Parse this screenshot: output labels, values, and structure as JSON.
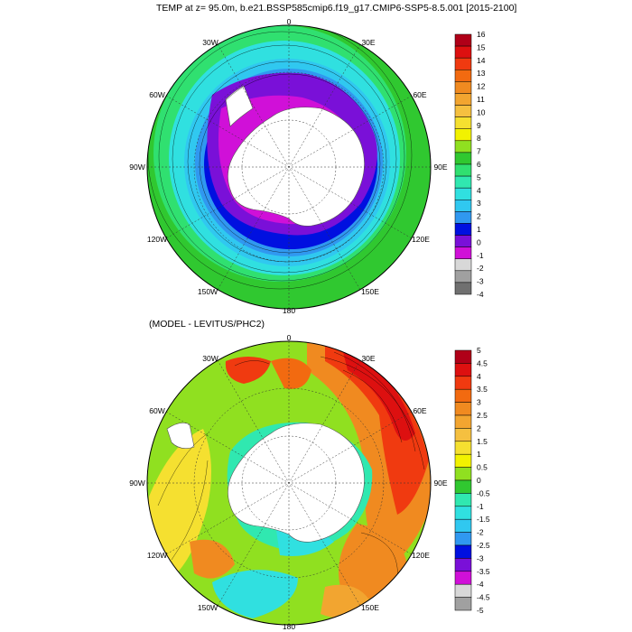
{
  "top_panel": {
    "title": "TEMP at z=  95.0m, b.e21.BSSP585cmip6.f19_g17.CMIP6-SSP5-8.5.001 [2015-2100]",
    "lon_labels": {
      "n": "0",
      "ne": "30E",
      "e1": "60E",
      "e": "90E",
      "se1": "120E",
      "se": "150E",
      "s": "180",
      "sw": "150W",
      "sw1": "120W",
      "w": "90W",
      "nw1": "60W",
      "nw": "30W"
    },
    "colorbar": {
      "labels": [
        "16",
        "15",
        "14",
        "13",
        "12",
        "11",
        "10",
        "9",
        "8",
        "7",
        "6",
        "5",
        "4",
        "3",
        "2",
        "1",
        "0",
        "-1",
        "-2",
        "-3",
        "-4"
      ],
      "colors": [
        "#b00018",
        "#dd1010",
        "#f03a10",
        "#f26a10",
        "#f08a20",
        "#f2a530",
        "#f5c040",
        "#f5e030",
        "#f2f200",
        "#90e020",
        "#30c830",
        "#30e070",
        "#30e8b0",
        "#30e0e0",
        "#30c8f0",
        "#3098f0",
        "#0010e0",
        "#7a10d8",
        "#d010d8",
        "#d8d8d8",
        "#a0a0a0",
        "#707070"
      ]
    }
  },
  "bottom_panel": {
    "title": "(MODEL - LEVITUS/PHC2)",
    "lon_labels": {
      "n": "0",
      "ne": "30E",
      "e1": "60E",
      "e": "90E",
      "se1": "120E",
      "se": "150E",
      "s": "180",
      "sw": "150W",
      "sw1": "120W",
      "w": "90W",
      "nw1": "60W",
      "nw": "30W"
    },
    "colorbar": {
      "labels": [
        "5",
        "4.5",
        "4",
        "3.5",
        "3",
        "2.5",
        "2",
        "1.5",
        "1",
        "0.5",
        "0",
        "-0.5",
        "-1",
        "-1.5",
        "-2",
        "-2.5",
        "-3",
        "-3.5",
        "-4",
        "-4.5",
        "-5"
      ],
      "colors": [
        "#b00018",
        "#dd1010",
        "#f03a10",
        "#f26a10",
        "#f08a20",
        "#f2a530",
        "#f5c040",
        "#f5e030",
        "#f2f200",
        "#90e020",
        "#30c830",
        "#30e8b0",
        "#30e0e0",
        "#30c8f0",
        "#3098f0",
        "#0010e0",
        "#7a10d8",
        "#d010d8",
        "#d8d8d8",
        "#a0a0a0"
      ]
    }
  }
}
